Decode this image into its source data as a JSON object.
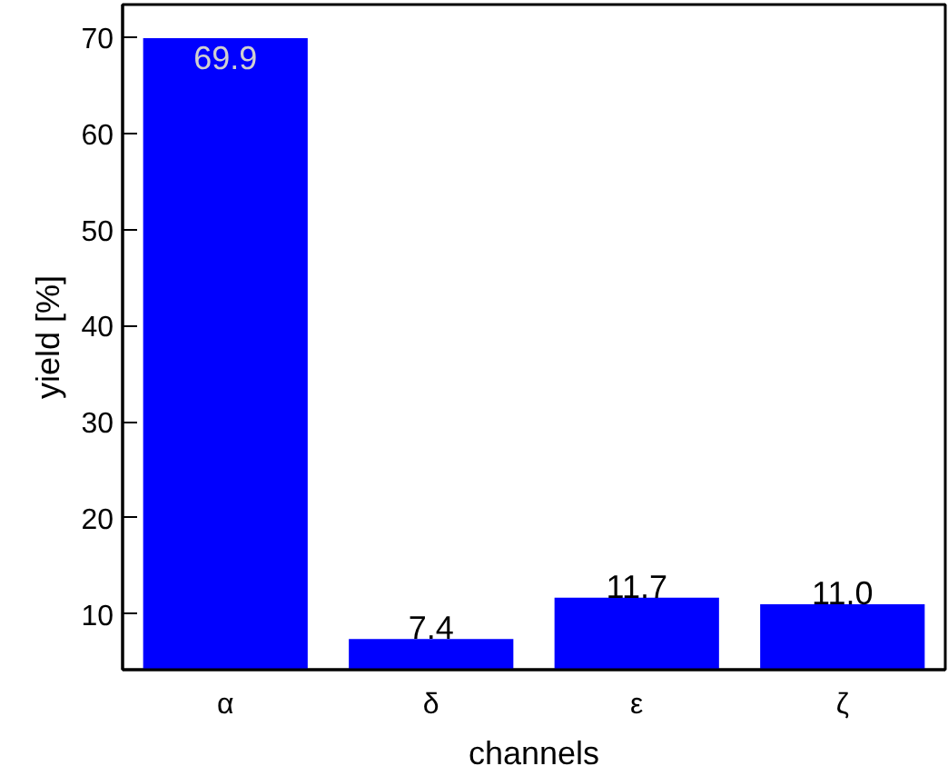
{
  "chart_data": {
    "type": "bar",
    "xlabel": "channels",
    "ylabel": "yield [%]",
    "categories": [
      "α",
      "δ",
      "ε",
      "ζ"
    ],
    "values": [
      69.9,
      7.4,
      11.7,
      11.0
    ],
    "color": "#0000ff",
    "ylim": [
      4.2,
      73.4
    ],
    "yticks": [
      10,
      20,
      30,
      40,
      50,
      60,
      70
    ],
    "value_labels": [
      "69.9",
      "7.4",
      "11.7",
      "11.0"
    ],
    "grid": false
  }
}
